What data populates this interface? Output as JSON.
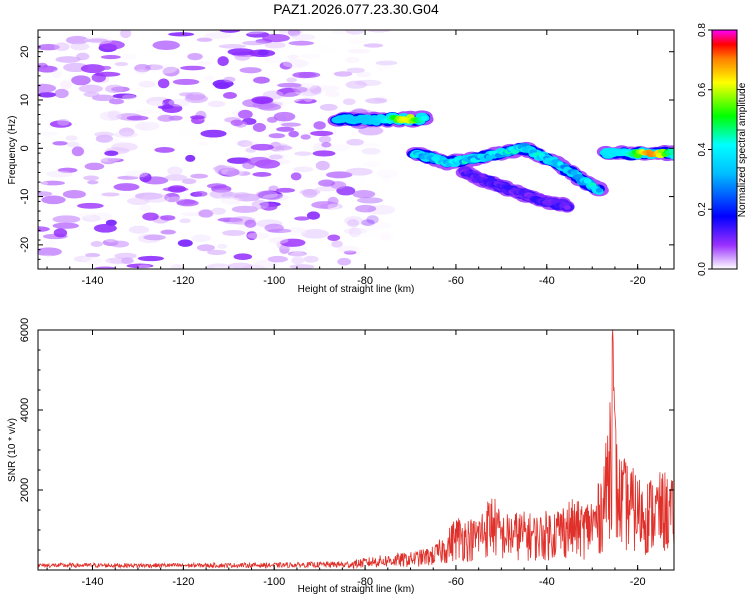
{
  "figure": {
    "title": "PAZ1.2026.077.23.30.G04"
  },
  "chart_data": [
    {
      "type": "heatmap",
      "xlabel": "Height of straight line (km)",
      "ylabel": "Frequency (Hz)",
      "xlim": [
        -152,
        -12
      ],
      "ylim": [
        -25,
        24.5
      ],
      "x_ticks": [
        -140,
        -120,
        -100,
        -80,
        -60,
        -40,
        -20
      ],
      "y_ticks": [
        -20,
        -10,
        0,
        10,
        20
      ],
      "grid": false,
      "colorbar": {
        "label": "Normalized spectral amplitude",
        "range": [
          0.0,
          0.8
        ],
        "ticks": [
          "0.0",
          "0.2",
          "0.4",
          "0.6",
          "0.8"
        ],
        "colormap": "rainbow (white-violet-blue-cyan-green-yellow-red-magenta)"
      },
      "features": [
        {
          "name": "noise",
          "x_range": [
            -152,
            -75
          ],
          "y_range": [
            -25,
            24.5
          ],
          "amplitude_range": [
            0.0,
            0.1
          ]
        },
        {
          "name": "tone-1",
          "x_range": [
            -86,
            -67
          ],
          "frequency_hz": 6,
          "peak_amplitude": 0.62,
          "peak_x": -71
        },
        {
          "name": "tone-2",
          "points": [
            [
              -69,
              -1
            ],
            [
              -62,
              -3
            ],
            [
              -55,
              -2
            ],
            [
              -45,
              0
            ],
            [
              -38,
              -3
            ],
            [
              -33,
              -6
            ],
            [
              -28,
              -9
            ]
          ],
          "peak_amplitude": 0.45
        },
        {
          "name": "tone-3",
          "points": [
            [
              -58,
              -5
            ],
            [
              -50,
              -8
            ],
            [
              -40,
              -11
            ],
            [
              -35,
              -12
            ]
          ],
          "peak_amplitude": 0.15
        },
        {
          "name": "tone-4",
          "x_range": [
            -27,
            -12
          ],
          "frequency_hz": -1,
          "peak_amplitude": 0.7,
          "peak_x": -17
        }
      ]
    },
    {
      "type": "line",
      "xlabel": "Height of straight line (km)",
      "ylabel": "SNR (10 * v/v)",
      "xlim": [
        -152,
        -12
      ],
      "ylim": [
        0,
        6000
      ],
      "x_ticks": [
        -140,
        -120,
        -100,
        -80,
        -60,
        -40,
        -20
      ],
      "y_ticks": [
        2000,
        4000,
        6000
      ],
      "grid": false,
      "series_color": "#e0302a",
      "envelope": [
        {
          "x": -152,
          "y": 150
        },
        {
          "x": -120,
          "y": 150
        },
        {
          "x": -100,
          "y": 160
        },
        {
          "x": -85,
          "y": 200
        },
        {
          "x": -78,
          "y": 350
        },
        {
          "x": -70,
          "y": 450
        },
        {
          "x": -65,
          "y": 600
        },
        {
          "x": -62,
          "y": 950
        },
        {
          "x": -60,
          "y": 1400
        },
        {
          "x": -56,
          "y": 1300
        },
        {
          "x": -54,
          "y": 1600
        },
        {
          "x": -52,
          "y": 2000
        },
        {
          "x": -50,
          "y": 1400
        },
        {
          "x": -46,
          "y": 1500
        },
        {
          "x": -42,
          "y": 1400
        },
        {
          "x": -38,
          "y": 1600
        },
        {
          "x": -35,
          "y": 1800
        },
        {
          "x": -32,
          "y": 1700
        },
        {
          "x": -29,
          "y": 2000
        },
        {
          "x": -27,
          "y": 3200
        },
        {
          "x": -25.5,
          "y": 6000
        },
        {
          "x": -24.5,
          "y": 3000
        },
        {
          "x": -22,
          "y": 2700
        },
        {
          "x": -19,
          "y": 2300
        },
        {
          "x": -16,
          "y": 2400
        },
        {
          "x": -14,
          "y": 2500
        },
        {
          "x": -12,
          "y": 2200
        }
      ]
    }
  ]
}
